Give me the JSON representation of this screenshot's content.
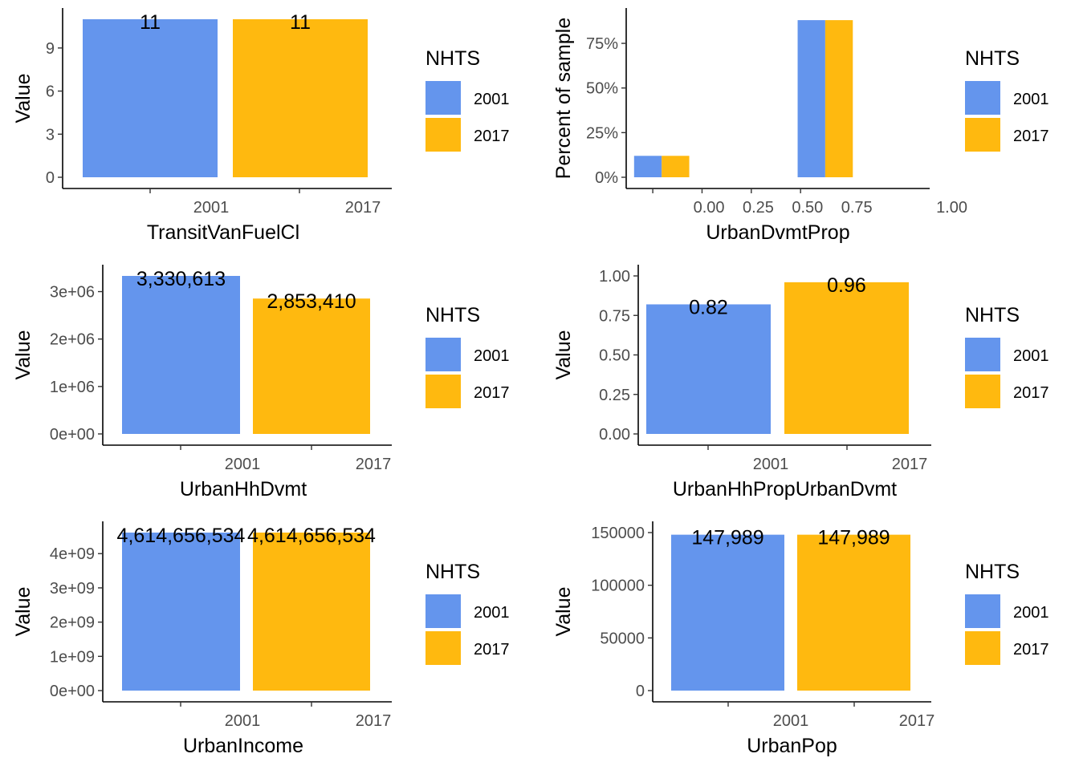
{
  "legend": {
    "title": "NHTS",
    "entries": [
      {
        "label": "2001",
        "color": "#6495ED"
      },
      {
        "label": "2017",
        "color": "#FFB90F"
      }
    ]
  },
  "chart_data": [
    {
      "type": "bar",
      "xlabel": "TransitVanFuelCl",
      "ylabel": "Value",
      "categories": [
        "2001",
        "2017"
      ],
      "values": [
        11,
        11
      ],
      "labels": [
        "11",
        "11"
      ],
      "ylim": [
        0,
        11
      ],
      "yticks": [
        {
          "v": 0,
          "label": "0"
        },
        {
          "v": 3,
          "label": "3"
        },
        {
          "v": 6,
          "label": "6"
        },
        {
          "v": 9,
          "label": "9"
        }
      ]
    },
    {
      "type": "histogram",
      "xlabel": "UrbanDvmtProp",
      "ylabel": "Percent of sample",
      "xlim": [
        -0.42,
        1.12
      ],
      "ylim": [
        0,
        0.885
      ],
      "xticks": [
        {
          "v": 0,
          "label": "0.00"
        },
        {
          "v": 0.25,
          "label": "0.25"
        },
        {
          "v": 0.5,
          "label": "0.50"
        },
        {
          "v": 0.75,
          "label": "0.75"
        }
      ],
      "extra_label": "1.00",
      "yticks": [
        {
          "v": 0,
          "label": "0%"
        },
        {
          "v": 0.25,
          "label": "25%"
        },
        {
          "v": 0.5,
          "label": "50%"
        },
        {
          "v": 0.75,
          "label": "75%"
        }
      ],
      "bins": [
        {
          "x0": -0.38,
          "x1": -0.24,
          "value": 0.12,
          "series": "2001"
        },
        {
          "x0": -0.24,
          "x1": -0.1,
          "value": 0.12,
          "series": "2017"
        },
        {
          "x0": 0.45,
          "x1": 0.59,
          "value": 0.88,
          "series": "2001"
        },
        {
          "x0": 0.59,
          "x1": 0.73,
          "value": 0.88,
          "series": "2017"
        }
      ]
    },
    {
      "type": "bar",
      "xlabel": "UrbanHhDvmt",
      "ylabel": "Value",
      "categories": [
        "2001",
        "2017"
      ],
      "values": [
        3330613,
        2853410
      ],
      "labels": [
        "3,330,613",
        "2,853,410"
      ],
      "ylim": [
        0,
        3330613
      ],
      "yticks": [
        {
          "v": 0,
          "label": "0e+00"
        },
        {
          "v": 1000000,
          "label": "1e+06"
        },
        {
          "v": 2000000,
          "label": "2e+06"
        },
        {
          "v": 3000000,
          "label": "3e+06"
        }
      ]
    },
    {
      "type": "bar",
      "xlabel": "UrbanHhPropUrbanDvmt",
      "ylabel": "Value",
      "categories": [
        "2001",
        "2017"
      ],
      "values": [
        0.82,
        0.96
      ],
      "labels": [
        "0.82",
        "0.96"
      ],
      "ylim": [
        0,
        1.0
      ],
      "yticks": [
        {
          "v": 0,
          "label": "0.00"
        },
        {
          "v": 0.25,
          "label": "0.25"
        },
        {
          "v": 0.5,
          "label": "0.50"
        },
        {
          "v": 0.75,
          "label": "0.75"
        },
        {
          "v": 1.0,
          "label": "1.00"
        }
      ]
    },
    {
      "type": "bar",
      "xlabel": "UrbanIncome",
      "ylabel": "Value",
      "categories": [
        "2001",
        "2017"
      ],
      "values": [
        4614656534,
        4614656534
      ],
      "labels": [
        "4,614,656,534",
        "4,614,656,534"
      ],
      "ylim": [
        0,
        4614656534
      ],
      "yticks": [
        {
          "v": 0,
          "label": "0e+00"
        },
        {
          "v": 1000000000,
          "label": "1e+09"
        },
        {
          "v": 2000000000,
          "label": "2e+09"
        },
        {
          "v": 3000000000,
          "label": "3e+09"
        },
        {
          "v": 4000000000,
          "label": "4e+09"
        }
      ]
    },
    {
      "type": "bar",
      "xlabel": "UrbanPop",
      "ylabel": "Value",
      "categories": [
        "2001",
        "2017"
      ],
      "values": [
        147989,
        147989
      ],
      "labels": [
        "147,989",
        "147,989"
      ],
      "ylim": [
        0,
        150000
      ],
      "yticks": [
        {
          "v": 0,
          "label": "0"
        },
        {
          "v": 50000,
          "label": "50000"
        },
        {
          "v": 100000,
          "label": "100000"
        },
        {
          "v": 150000,
          "label": "150000"
        }
      ]
    }
  ]
}
